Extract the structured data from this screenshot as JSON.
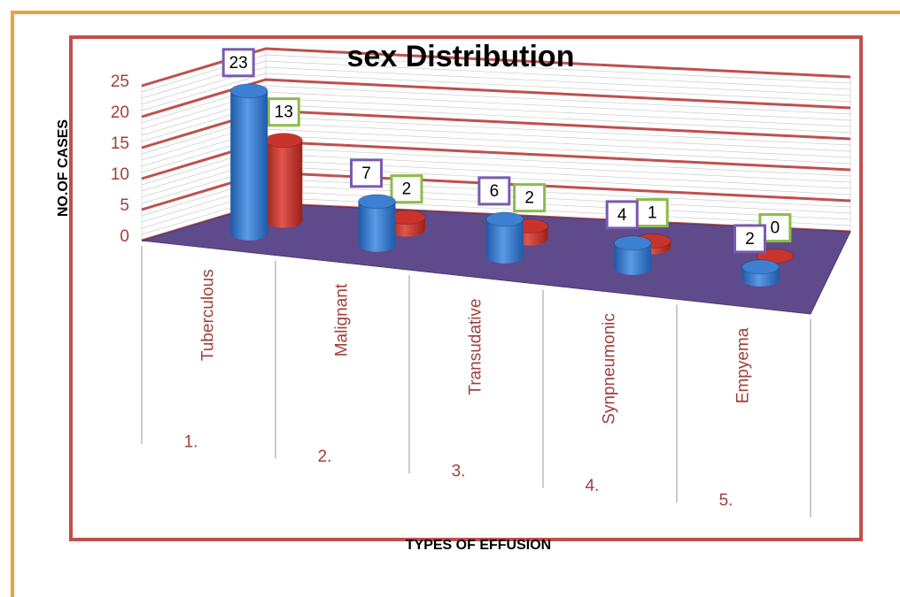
{
  "chart_data": {
    "type": "bar3d",
    "title": "sex Distribution",
    "y_label": "NO.OF CASES",
    "x_label": "TYPES OF EFFUSION",
    "categories": [
      "Tuberculous",
      "Malignant",
      "Transudative",
      "Synpneumonic",
      "Empyema"
    ],
    "category_numbers": [
      "1.",
      "2.",
      "3.",
      "4.",
      "5."
    ],
    "series": [
      {
        "color": "#3d7fd0",
        "values": [
          23,
          7,
          6,
          4,
          2
        ]
      },
      {
        "color": "#c8342c",
        "values": [
          13,
          2,
          2,
          1,
          0
        ]
      }
    ],
    "ylim": [
      0,
      25
    ],
    "yticks": [
      0,
      5,
      10,
      15,
      20,
      25
    ],
    "grid": true
  }
}
